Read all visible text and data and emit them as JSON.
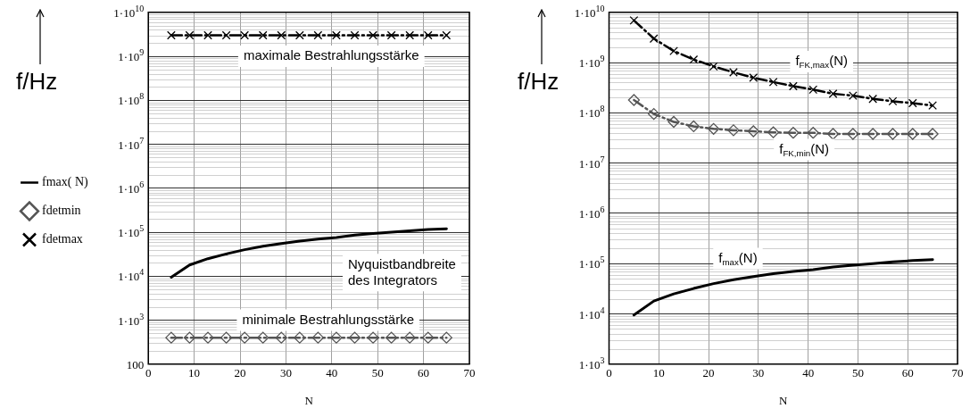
{
  "chart_data": [
    {
      "type": "line",
      "xlabel": "N",
      "ylabel": "f/Hz",
      "x": [
        5,
        9,
        13,
        17,
        21,
        25,
        29,
        33,
        37,
        41,
        45,
        49,
        53,
        57,
        61,
        65
      ],
      "xlim": [
        0,
        70
      ],
      "xticks": [
        0,
        10,
        20,
        30,
        40,
        50,
        60,
        70
      ],
      "ylim": [
        100,
        10000000000
      ],
      "yticks": [
        100,
        {
          "value": 1000,
          "label": "1·10$^{3}$"
        },
        {
          "value": 10000,
          "label": "1·10$^{4}$"
        },
        {
          "value": 100000,
          "label": "1·10$^{5}$"
        },
        {
          "value": 1000000,
          "label": "1·10$^{6}$"
        },
        {
          "value": 10000000,
          "label": "1·10$^{7}$"
        },
        {
          "value": 100000000,
          "label": "1·10$^{8}$"
        },
        {
          "value": 1000000000,
          "label": "1·10$^{9}$"
        },
        {
          "value": 10000000000,
          "label": "1·10$^{10}$"
        }
      ],
      "log": "y",
      "grid": true,
      "legend": "left",
      "series": [
        {
          "name": "fmax( N)",
          "color": "#000000",
          "marker": "none",
          "line_style": "solid",
          "values": [
            9500,
            18000,
            25000,
            32000,
            40000,
            48000,
            55000,
            63000,
            70000,
            76000,
            86000,
            93000,
            100000,
            108000,
            115000,
            120000
          ]
        },
        {
          "name": "fdetmin",
          "color": "#555555",
          "marker": "diamond",
          "line_style": "dashed",
          "values": [
            400,
            400,
            400,
            400,
            400,
            400,
            400,
            400,
            400,
            400,
            400,
            400,
            400,
            400,
            400,
            400
          ]
        },
        {
          "name": "fdetmax",
          "color": "#000000",
          "marker": "cross",
          "line_style": "dashed",
          "values": [
            3000000000,
            3000000000,
            3000000000,
            3000000000,
            3000000000,
            3000000000,
            3000000000,
            3000000000,
            3000000000,
            3000000000,
            3000000000,
            3000000000,
            3000000000,
            3000000000,
            3000000000,
            3000000000
          ]
        }
      ],
      "annotations": [
        "maximale Bestrahlungsstärke",
        "Nyquistbandbreite\ndes Integrators",
        "minimale Bestrahlungsstärke"
      ]
    },
    {
      "type": "line",
      "xlabel": "N",
      "ylabel": "f/Hz",
      "x": [
        5,
        9,
        13,
        17,
        21,
        25,
        29,
        33,
        37,
        41,
        45,
        49,
        53,
        57,
        61,
        65
      ],
      "xlim": [
        0,
        70
      ],
      "xticks": [
        0,
        10,
        20,
        30,
        40,
        50,
        60,
        70
      ],
      "ylim": [
        1000,
        10000000000
      ],
      "yticks": [
        {
          "value": 1000,
          "label": "1·10$^{3}$"
        },
        {
          "value": 10000,
          "label": "1·10$^{4}$"
        },
        {
          "value": 100000,
          "label": "1·10$^{5}$"
        },
        {
          "value": 1000000,
          "label": "1·10$^{6}$"
        },
        {
          "value": 10000000,
          "label": "1·10$^{7}$"
        },
        {
          "value": 100000000,
          "label": "1·10$^{8}$"
        },
        {
          "value": 1000000000,
          "label": "1·10$^{9}$"
        },
        {
          "value": 10000000000,
          "label": "1·10$^{10}$"
        }
      ],
      "log": "y",
      "grid": true,
      "series": [
        {
          "color": "#000000",
          "marker": "cross",
          "line_style": "dashed",
          "values": [
            6900000000,
            3000000000,
            1700000000,
            1150000000,
            840000000,
            640000000,
            500000000,
            410000000,
            340000000,
            290000000,
            240000000,
            220000000,
            190000000,
            170000000,
            156000000,
            140000000
          ]
        },
        {
          "color": "#555555",
          "marker": "diamond",
          "line_style": "dashed",
          "values": [
            180000000,
            95000000,
            66000000,
            54000000,
            48000000,
            45000000,
            43000000,
            41000000,
            40000000,
            40000000,
            38000000,
            38000000,
            38000000,
            38000000,
            38000000,
            38000000
          ]
        },
        {
          "color": "#000000",
          "marker": "none",
          "line_style": "solid",
          "values": [
            9500,
            18000,
            25000,
            32000,
            40000,
            48000,
            55000,
            63000,
            70000,
            76000,
            86000,
            93000,
            100000,
            108000,
            115000,
            120000
          ]
        }
      ],
      "annotations": [
        "f$_{FK,max}$(N)",
        "f$_{FK,min}$(N)",
        "f$_{max}$(N)"
      ]
    }
  ]
}
